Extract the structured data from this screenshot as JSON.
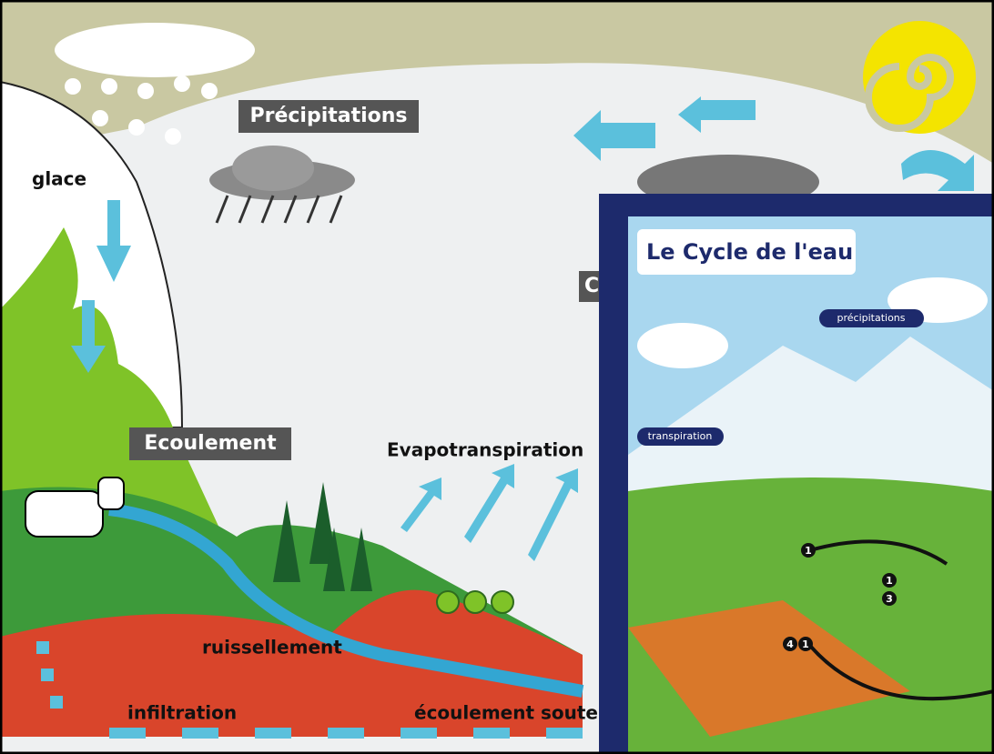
{
  "labels": {
    "precipitations": "Précipitations",
    "glace": "glace",
    "ecoulement": "Ecoulement",
    "evapotranspiration": "Evapotranspiration",
    "ruissellement": "ruissellement",
    "infiltration": "infiltration",
    "ecoulement_souterrain": "écoulement soute",
    "partial": "C"
  },
  "inset": {
    "title": "Le Cycle de l'eau",
    "precipitations": "précipitations",
    "transpiration": "transpiration",
    "markers": [
      "1",
      "1",
      "3",
      "4",
      "1"
    ]
  }
}
